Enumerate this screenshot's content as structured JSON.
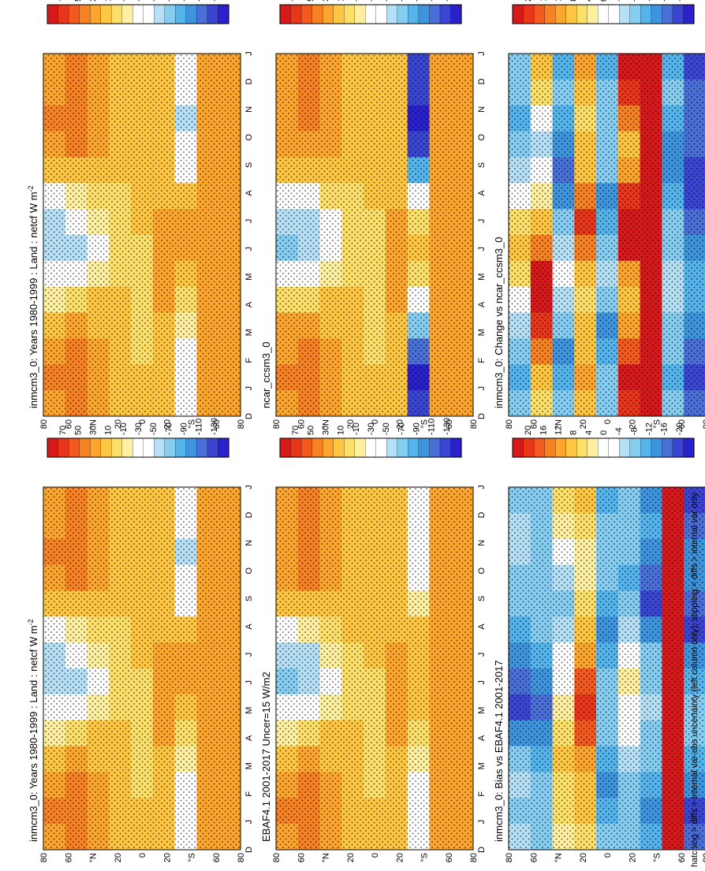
{
  "figure": {
    "footnote": "hatching = diffs > internal var-obs uncertainty (left column only); stippling = diffs > internal var only"
  },
  "colorbars": {
    "abs": {
      "labels": [
        "70",
        "50",
        "30",
        "10",
        "-10",
        "-30",
        "-50",
        "-70",
        "-90",
        "-110",
        "-130"
      ],
      "colors": [
        "#d7191c",
        "#e8361a",
        "#f25a1e",
        "#f78224",
        "#fca62e",
        "#fec641",
        "#fde06a",
        "#fef0a0",
        "#ffffff",
        "#ffffff",
        "#b5e0f6",
        "#86cdf2",
        "#55b4ec",
        "#3e95dd",
        "#4a6fd7",
        "#3a46d2",
        "#2a21cc"
      ]
    },
    "diff": {
      "labels": [
        "20",
        "16",
        "12",
        "8",
        "4",
        "0",
        "-4",
        "-8",
        "-12",
        "-16",
        "-20"
      ],
      "colors": [
        "#d7191c",
        "#e8361a",
        "#f25a1e",
        "#f78224",
        "#fca62e",
        "#fec641",
        "#fde06a",
        "#fef0a0",
        "#ffffff",
        "#ffffff",
        "#b5e0f6",
        "#86cdf2",
        "#55b4ec",
        "#3e95dd",
        "#4a6fd7",
        "#3a46d2",
        "#2a21cc"
      ]
    }
  },
  "axes": {
    "months": [
      "D",
      "J",
      "F",
      "M",
      "A",
      "M",
      "J",
      "J",
      "A",
      "S",
      "O",
      "N",
      "D",
      "J"
    ],
    "lat_labels": [
      "80",
      "60",
      "°N",
      "20",
      "0",
      "20",
      "°S",
      "60",
      "80"
    ]
  },
  "panels": [
    {
      "title": "inmcm3_0: Years 1980-1999 : Land : netcf W m",
      "superscript": "-2",
      "scale": "abs",
      "hatch": true
    },
    {
      "title": "EBAF4.1 2001-2017 Uncer=15 W/m2",
      "superscript": "",
      "scale": "abs",
      "hatch": false
    },
    {
      "title": "inmcm3_0: Bias vs EBAF4.1 2001-2017",
      "superscript": "",
      "scale": "diff",
      "hatch": true
    },
    {
      "title": "inmcm3_0: Years 1980-1999 : Land : netcf W m",
      "superscript": "-2",
      "scale": "abs",
      "hatch": false
    },
    {
      "title": "ncar_ccsm3_0",
      "superscript": "",
      "scale": "abs",
      "hatch": false
    },
    {
      "title": "inmcm3_0: Change vs ncar_ccsm3_0",
      "superscript": "",
      "scale": "diff",
      "hatch": false
    }
  ],
  "chart_data": {
    "type": "heatmap",
    "x_axis": "month",
    "y_axis": "latitude",
    "months": [
      "D",
      "J",
      "F",
      "M",
      "A",
      "M",
      "J",
      "J",
      "A",
      "S",
      "O",
      "N",
      "D",
      "J"
    ],
    "latitudes": [
      80,
      60,
      40,
      20,
      0,
      -20,
      -40,
      -60,
      -80
    ],
    "units": "W m-2",
    "abs_colorbar_ticks": [
      70,
      50,
      30,
      10,
      -10,
      -30,
      -50,
      -70,
      -90,
      -110,
      -130
    ],
    "diff_colorbar_ticks": [
      20,
      16,
      12,
      8,
      4,
      0,
      -4,
      -8,
      -12,
      -16,
      -20
    ],
    "panels": [
      {
        "name": "inmcm3_0 1980-1999 netcf",
        "values": [
          [
            20,
            25,
            22,
            8,
            -20,
            -45,
            -55,
            -48,
            -25,
            5,
            20,
            25,
            22,
            20
          ],
          [
            30,
            32,
            28,
            15,
            -5,
            -30,
            -50,
            -45,
            -20,
            10,
            25,
            30,
            32,
            30
          ],
          [
            15,
            15,
            12,
            8,
            0,
            -15,
            -25,
            -20,
            -10,
            5,
            12,
            15,
            15,
            15
          ],
          [
            10,
            10,
            8,
            6,
            2,
            -5,
            -8,
            -6,
            -2,
            4,
            8,
            10,
            10,
            10
          ],
          [
            0,
            0,
            -2,
            -4,
            -6,
            -4,
            -2,
            0,
            2,
            2,
            0,
            0,
            0,
            0
          ],
          [
            5,
            5,
            8,
            10,
            12,
            14,
            16,
            14,
            10,
            6,
            4,
            5,
            5,
            5
          ],
          [
            -40,
            -45,
            -35,
            -20,
            -5,
            10,
            20,
            15,
            0,
            -25,
            -45,
            -50,
            -40,
            -40
          ],
          [
            20,
            22,
            22,
            20,
            18,
            18,
            18,
            20,
            20,
            22,
            22,
            20,
            20,
            22
          ],
          [
            15,
            15,
            15,
            15,
            15,
            15,
            15,
            15,
            15,
            15,
            15,
            15,
            15,
            15
          ]
        ]
      },
      {
        "name": "EBAF4.1 2001-2017",
        "values": [
          [
            20,
            25,
            22,
            10,
            -15,
            -35,
            -60,
            -55,
            -30,
            0,
            18,
            22,
            20,
            20
          ],
          [
            28,
            30,
            26,
            12,
            -8,
            -35,
            -55,
            -50,
            -22,
            8,
            24,
            28,
            30,
            28
          ],
          [
            15,
            14,
            12,
            8,
            0,
            -15,
            -25,
            -20,
            -10,
            5,
            12,
            15,
            15,
            15
          ],
          [
            10,
            10,
            8,
            6,
            2,
            -4,
            -6,
            -4,
            0,
            4,
            8,
            10,
            10,
            10
          ],
          [
            0,
            0,
            -2,
            -4,
            -6,
            -4,
            -2,
            0,
            2,
            2,
            0,
            0,
            0,
            0
          ],
          [
            4,
            4,
            8,
            10,
            12,
            14,
            16,
            14,
            10,
            6,
            4,
            4,
            4,
            4
          ],
          [
            -30,
            -30,
            -25,
            -15,
            -5,
            5,
            10,
            8,
            0,
            -20,
            -30,
            -30,
            -30,
            -30
          ],
          [
            22,
            22,
            22,
            20,
            18,
            18,
            18,
            20,
            20,
            22,
            22,
            22,
            22,
            22
          ],
          [
            15,
            15,
            15,
            15,
            15,
            15,
            15,
            15,
            15,
            15,
            15,
            15,
            15,
            15
          ]
        ]
      },
      {
        "name": "inmcm3_0 bias vs EBAF4.1",
        "values": [
          [
            -4,
            -6,
            -5,
            -8,
            -12,
            -16,
            -14,
            -12,
            -10,
            -8,
            -6,
            -4,
            -4,
            -6
          ],
          [
            -6,
            -8,
            -8,
            -10,
            -12,
            -14,
            -12,
            -10,
            -8,
            -8,
            -6,
            -6,
            -6,
            -8
          ],
          [
            2,
            4,
            4,
            6,
            4,
            2,
            0,
            -2,
            -4,
            -6,
            -4,
            -2,
            2,
            4
          ],
          [
            4,
            6,
            8,
            10,
            14,
            16,
            14,
            10,
            6,
            4,
            2,
            2,
            4,
            6
          ],
          [
            -8,
            -10,
            -12,
            -10,
            -8,
            -6,
            -8,
            -10,
            -12,
            -10,
            -8,
            -6,
            -8,
            -10
          ],
          [
            -6,
            -8,
            -6,
            -4,
            -2,
            0,
            2,
            0,
            -4,
            -8,
            -10,
            -8,
            -6,
            -8
          ],
          [
            -10,
            -12,
            -10,
            -8,
            -6,
            -4,
            -6,
            -8,
            -12,
            -16,
            -14,
            -12,
            -10,
            -12
          ],
          [
            20,
            20,
            20,
            20,
            20,
            20,
            20,
            20,
            20,
            20,
            20,
            20,
            20,
            20
          ],
          [
            -14,
            -16,
            -12,
            -10,
            -8,
            -8,
            -10,
            -12,
            -16,
            -14,
            -12,
            -12,
            -14,
            -16
          ]
        ]
      },
      {
        "name": "inmcm3_0 1980-1999 netcf (repeat)",
        "values": [
          [
            20,
            25,
            22,
            8,
            -20,
            -45,
            -55,
            -48,
            -25,
            5,
            20,
            25,
            22,
            20
          ],
          [
            30,
            32,
            28,
            15,
            -5,
            -30,
            -50,
            -45,
            -20,
            10,
            25,
            30,
            32,
            30
          ],
          [
            15,
            15,
            12,
            8,
            0,
            -15,
            -25,
            -20,
            -10,
            5,
            12,
            15,
            15,
            15
          ],
          [
            10,
            10,
            8,
            6,
            2,
            -5,
            -8,
            -6,
            -2,
            4,
            8,
            10,
            10,
            10
          ],
          [
            0,
            0,
            -2,
            -4,
            -6,
            -4,
            -2,
            0,
            2,
            2,
            0,
            0,
            0,
            0
          ],
          [
            5,
            5,
            8,
            10,
            12,
            14,
            16,
            14,
            10,
            6,
            4,
            5,
            5,
            5
          ],
          [
            -40,
            -45,
            -35,
            -20,
            -5,
            10,
            20,
            15,
            0,
            -25,
            -45,
            -50,
            -40,
            -40
          ],
          [
            20,
            22,
            22,
            20,
            18,
            18,
            18,
            20,
            20,
            22,
            22,
            20,
            20,
            22
          ],
          [
            15,
            15,
            15,
            15,
            15,
            15,
            15,
            15,
            15,
            15,
            15,
            15,
            15,
            15
          ]
        ]
      },
      {
        "name": "ncar_ccsm3_0",
        "values": [
          [
            20,
            24,
            22,
            12,
            -10,
            -40,
            -60,
            -55,
            -30,
            0,
            18,
            22,
            20,
            20
          ],
          [
            28,
            30,
            26,
            14,
            -6,
            -35,
            -58,
            -52,
            -25,
            5,
            22,
            28,
            28,
            28
          ],
          [
            14,
            14,
            12,
            8,
            0,
            -18,
            -30,
            -25,
            -12,
            4,
            12,
            14,
            14,
            14
          ],
          [
            10,
            10,
            8,
            6,
            2,
            -4,
            -8,
            -6,
            -2,
            4,
            8,
            10,
            10,
            10
          ],
          [
            0,
            0,
            -2,
            -4,
            -6,
            -6,
            -4,
            -2,
            0,
            2,
            0,
            0,
            0,
            0
          ],
          [
            6,
            6,
            8,
            10,
            12,
            14,
            16,
            14,
            10,
            6,
            4,
            6,
            6,
            6
          ],
          [
            -110,
            -120,
            -100,
            -60,
            -30,
            -10,
            0,
            -5,
            -30,
            -80,
            -110,
            -120,
            -110,
            -110
          ],
          [
            20,
            20,
            20,
            20,
            20,
            20,
            20,
            20,
            20,
            20,
            20,
            20,
            20,
            20
          ],
          [
            15,
            15,
            15,
            15,
            15,
            15,
            15,
            15,
            15,
            15,
            15,
            15,
            15,
            15
          ]
        ]
      },
      {
        "name": "inmcm3_0 change vs ncar_ccsm3_0",
        "values": [
          [
            -8,
            -10,
            -8,
            -4,
            0,
            4,
            6,
            4,
            0,
            -4,
            -8,
            -10,
            -8,
            -8
          ],
          [
            4,
            8,
            12,
            16,
            20,
            18,
            12,
            6,
            2,
            -2,
            -4,
            -2,
            4,
            6
          ],
          [
            -8,
            -10,
            -12,
            -8,
            -4,
            -2,
            -4,
            -8,
            -12,
            -14,
            -12,
            -10,
            -8,
            -10
          ],
          [
            8,
            10,
            8,
            6,
            4,
            8,
            12,
            16,
            12,
            8,
            6,
            4,
            8,
            10
          ],
          [
            -6,
            -8,
            -10,
            -12,
            -8,
            -4,
            -6,
            -10,
            -12,
            -8,
            -6,
            -6,
            -8,
            -10
          ],
          [
            16,
            18,
            14,
            10,
            6,
            10,
            18,
            20,
            16,
            10,
            8,
            12,
            16,
            18
          ],
          [
            20,
            20,
            20,
            20,
            20,
            20,
            20,
            20,
            20,
            20,
            20,
            20,
            20,
            20
          ],
          [
            -8,
            -10,
            -8,
            -6,
            -4,
            -4,
            -6,
            -8,
            -10,
            -12,
            -12,
            -10,
            -8,
            -10
          ],
          [
            -14,
            -16,
            -14,
            -12,
            -10,
            -10,
            -12,
            -14,
            -16,
            -16,
            -14,
            -14,
            -14,
            -16
          ]
        ]
      }
    ]
  }
}
